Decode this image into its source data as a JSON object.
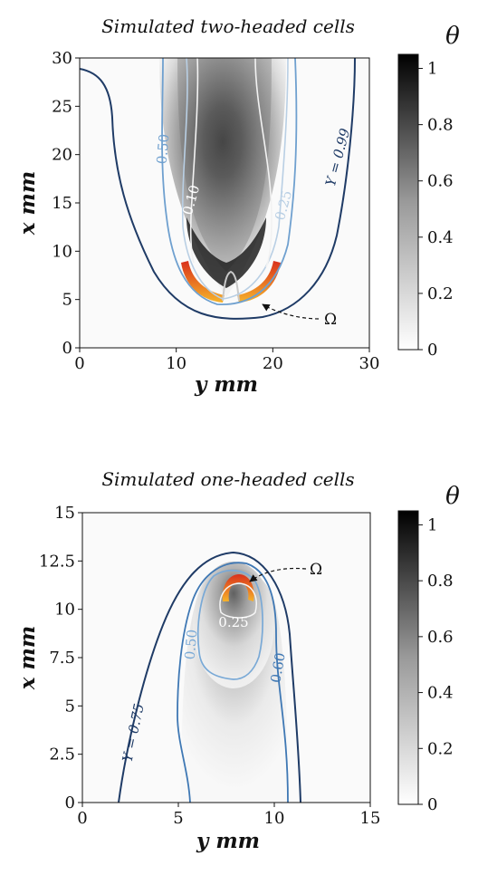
{
  "chart_data": [
    {
      "type": "heatmap",
      "title": "Simulated two-headed cells",
      "xlabel": "y mm",
      "ylabel": "x mm",
      "xlim": [
        0,
        30
      ],
      "ylim": [
        0,
        30
      ],
      "x_ticks": [
        "0",
        "10",
        "20",
        "30"
      ],
      "y_ticks": [
        "0",
        "5",
        "10",
        "15",
        "20",
        "25",
        "30"
      ],
      "colorbar": {
        "label": "θ",
        "range": [
          0,
          1.05
        ],
        "ticks": [
          "0",
          "0.2",
          "0.4",
          "0.6",
          "0.8",
          "1"
        ]
      },
      "contour_labels": [
        "0.50",
        "0.10",
        "0.25",
        "Y = 0.99"
      ],
      "annotation": "Ω",
      "colors": {
        "y099": "#1f3b66",
        "y050": "#6fa0cf",
        "y025": "#b9cfe4",
        "y010": "#f2f2f2",
        "omega_outer": "#d9301c",
        "omega_inner": "#f6d24a"
      }
    },
    {
      "type": "heatmap",
      "title": "Simulated one-headed cells",
      "xlabel": "y mm",
      "ylabel": "x mm",
      "xlim": [
        0,
        15
      ],
      "ylim": [
        0,
        15
      ],
      "x_ticks": [
        "0",
        "5",
        "10",
        "15"
      ],
      "y_ticks": [
        "0",
        "2.5",
        "5",
        "7.5",
        "10",
        "12.5",
        "15"
      ],
      "colorbar": {
        "label": "θ",
        "range": [
          0,
          1.05
        ],
        "ticks": [
          "0",
          "0.2",
          "0.4",
          "0.6",
          "0.8",
          "1"
        ]
      },
      "contour_labels": [
        "0.25",
        "0.50",
        "0.60",
        "Y = 0.75"
      ],
      "annotation": "Ω",
      "colors": {
        "y075": "#1f3b66",
        "y060": "#3f78b4",
        "y050": "#79a9d6",
        "y025": "#f5f5f5",
        "omega_outer": "#d9301c",
        "omega_inner": "#f6d24a"
      }
    }
  ]
}
